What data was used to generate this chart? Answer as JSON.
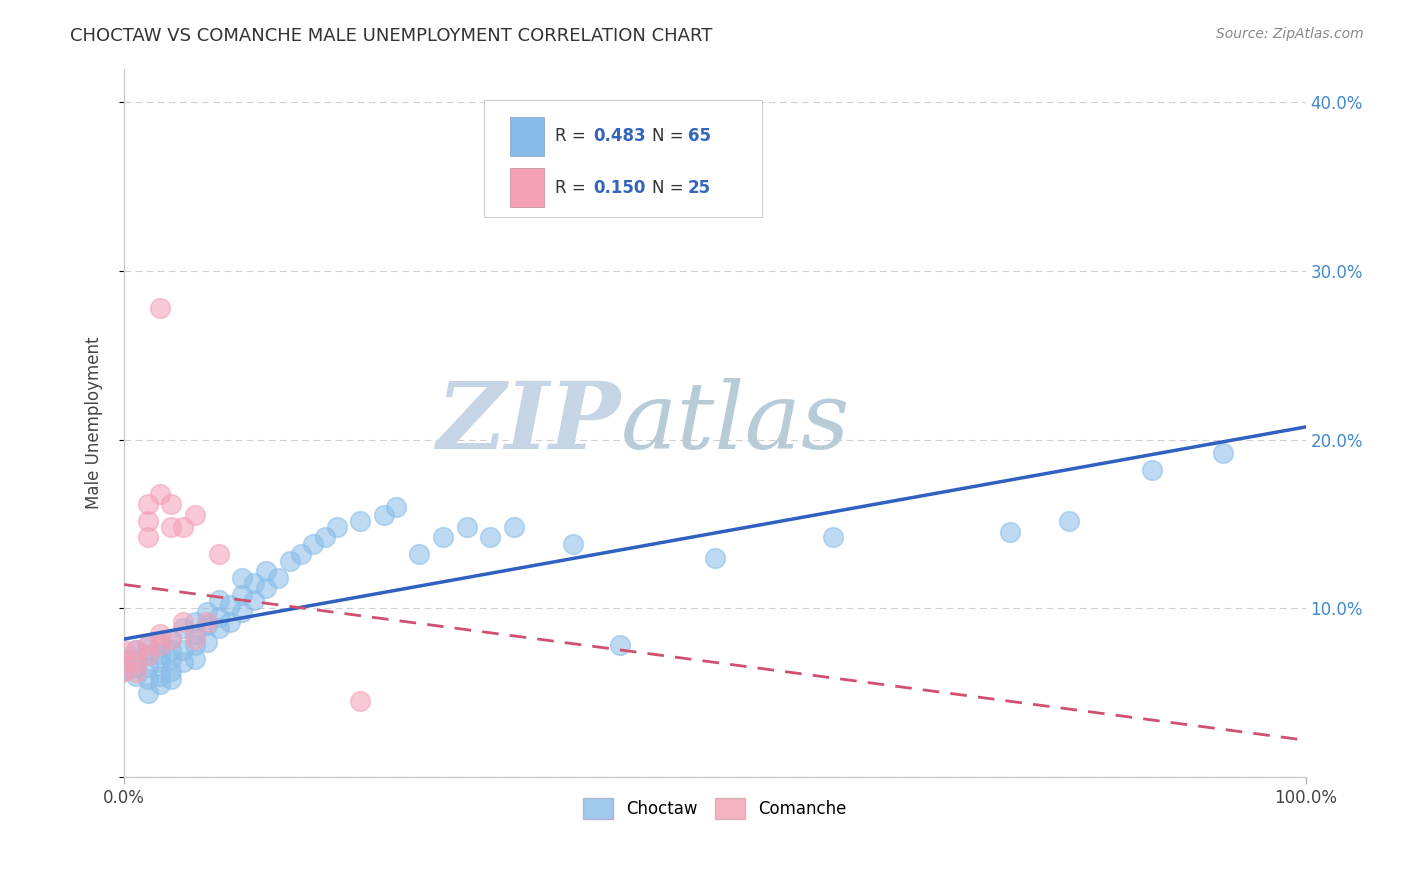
{
  "title": "CHOCTAW VS COMANCHE MALE UNEMPLOYMENT CORRELATION CHART",
  "source": "Source: ZipAtlas.com",
  "ylabel": "Male Unemployment",
  "yticks": [
    0.0,
    0.1,
    0.2,
    0.3,
    0.4
  ],
  "ytick_labels": [
    "",
    "10.0%",
    "20.0%",
    "30.0%",
    "40.0%"
  ],
  "xlim": [
    0.0,
    1.0
  ],
  "ylim": [
    0.0,
    0.42
  ],
  "choctaw_color": "#88bce8",
  "comanche_color": "#f4a0b5",
  "choctaw_line_color": "#3060c0",
  "comanche_line_color": "#d05070",
  "watermark_zip_color": "#c8d8e8",
  "watermark_atlas_color": "#b0c8d8",
  "background_color": "#ffffff",
  "grid_color": "#d0d0d0",
  "legend_entries": [
    "Choctaw",
    "Comanche"
  ],
  "choctaw_x": [
    0.0,
    0.0,
    0.01,
    0.01,
    0.01,
    0.01,
    0.02,
    0.02,
    0.02,
    0.02,
    0.02,
    0.03,
    0.03,
    0.03,
    0.03,
    0.03,
    0.04,
    0.04,
    0.04,
    0.04,
    0.04,
    0.05,
    0.05,
    0.05,
    0.06,
    0.06,
    0.06,
    0.06,
    0.07,
    0.07,
    0.07,
    0.08,
    0.08,
    0.08,
    0.09,
    0.09,
    0.1,
    0.1,
    0.1,
    0.11,
    0.11,
    0.12,
    0.12,
    0.13,
    0.14,
    0.15,
    0.16,
    0.17,
    0.18,
    0.2,
    0.22,
    0.23,
    0.25,
    0.27,
    0.29,
    0.31,
    0.33,
    0.38,
    0.42,
    0.5,
    0.6,
    0.75,
    0.8,
    0.87,
    0.93
  ],
  "choctaw_y": [
    0.063,
    0.07,
    0.06,
    0.065,
    0.07,
    0.075,
    0.05,
    0.058,
    0.065,
    0.072,
    0.078,
    0.055,
    0.06,
    0.068,
    0.073,
    0.08,
    0.058,
    0.063,
    0.07,
    0.075,
    0.082,
    0.068,
    0.075,
    0.088,
    0.07,
    0.078,
    0.085,
    0.092,
    0.08,
    0.09,
    0.098,
    0.088,
    0.095,
    0.105,
    0.092,
    0.102,
    0.098,
    0.108,
    0.118,
    0.105,
    0.115,
    0.112,
    0.122,
    0.118,
    0.128,
    0.132,
    0.138,
    0.142,
    0.148,
    0.152,
    0.155,
    0.16,
    0.132,
    0.142,
    0.148,
    0.142,
    0.148,
    0.138,
    0.078,
    0.13,
    0.142,
    0.145,
    0.152,
    0.182,
    0.192
  ],
  "comanche_x": [
    0.0,
    0.0,
    0.0,
    0.01,
    0.01,
    0.01,
    0.02,
    0.02,
    0.02,
    0.02,
    0.02,
    0.03,
    0.03,
    0.03,
    0.03,
    0.04,
    0.04,
    0.04,
    0.05,
    0.05,
    0.06,
    0.06,
    0.07,
    0.08,
    0.2
  ],
  "comanche_y": [
    0.063,
    0.068,
    0.075,
    0.062,
    0.068,
    0.075,
    0.078,
    0.152,
    0.162,
    0.142,
    0.072,
    0.078,
    0.085,
    0.168,
    0.278,
    0.082,
    0.148,
    0.162,
    0.092,
    0.148,
    0.082,
    0.155,
    0.092,
    0.132,
    0.045
  ]
}
